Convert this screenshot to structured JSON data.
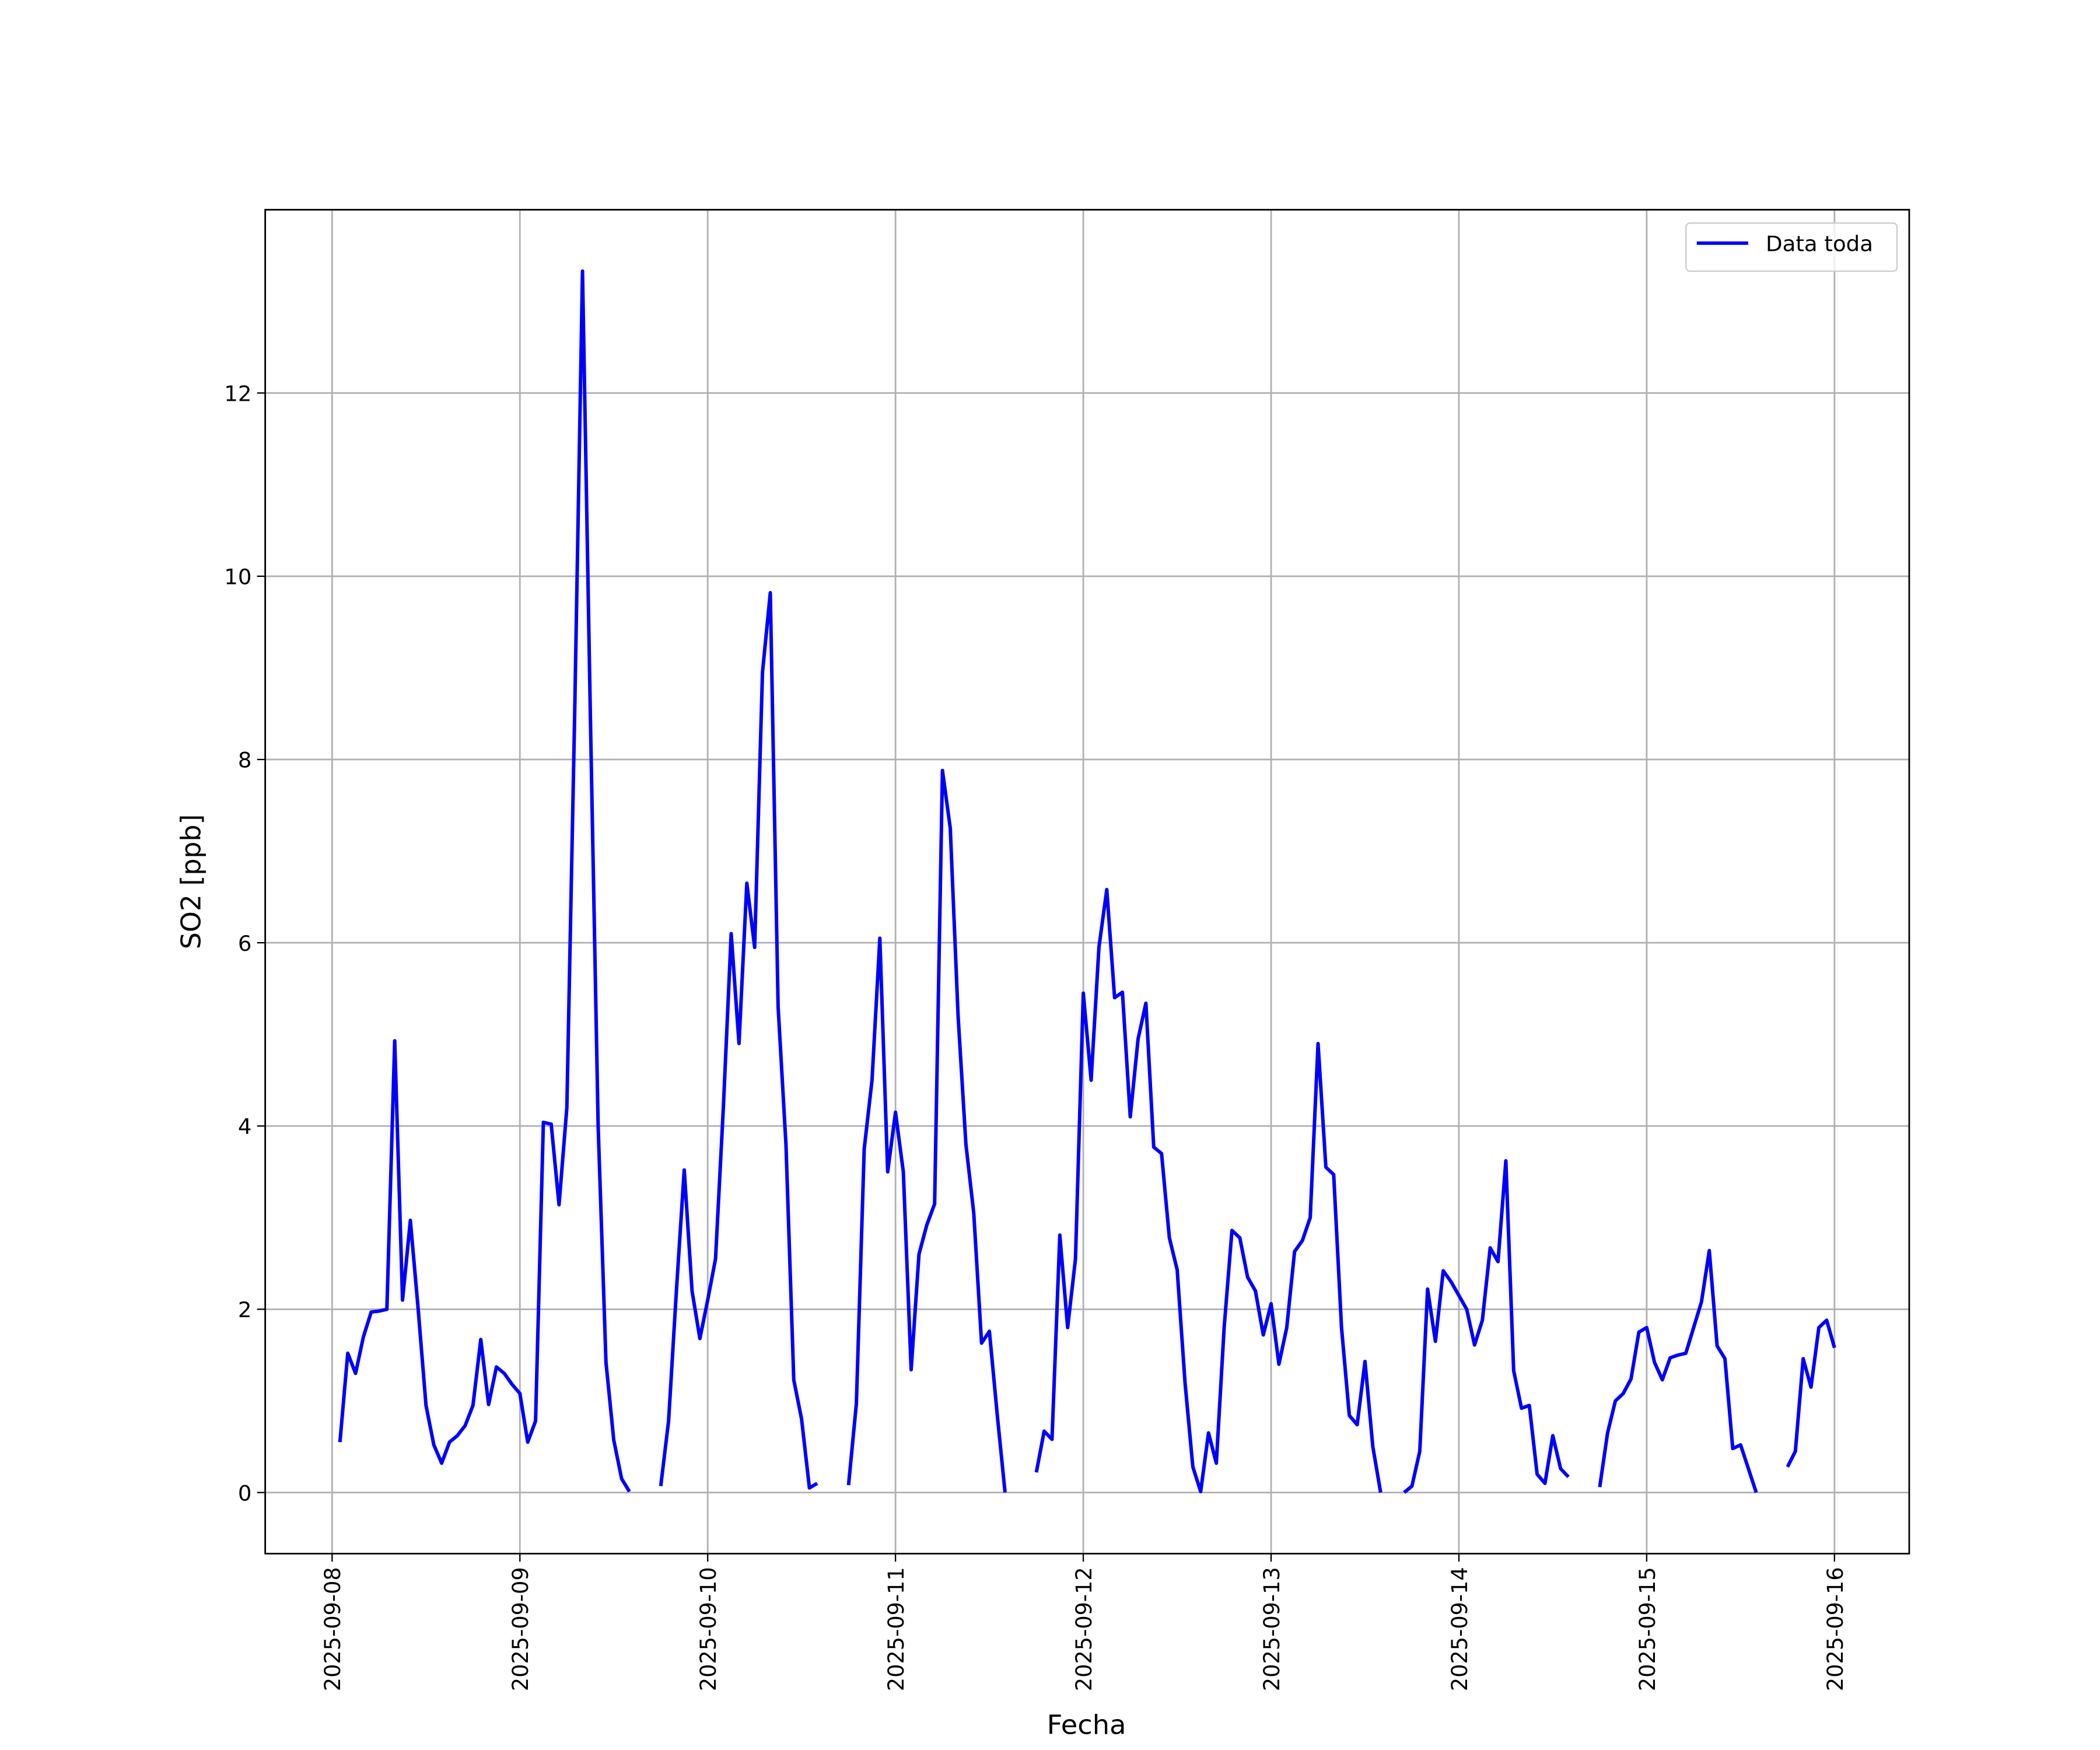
{
  "chart_data": {
    "type": "line",
    "x_label": "Fecha",
    "y_label": "SO2 [ppb]",
    "x": [
      "2025-09-08 01:00",
      "2025-09-08 02:00",
      "2025-09-08 03:00",
      "2025-09-08 04:00",
      "2025-09-08 05:00",
      "2025-09-08 06:00",
      "2025-09-08 07:00",
      "2025-09-08 08:00",
      "2025-09-08 09:00",
      "2025-09-08 10:00",
      "2025-09-08 11:00",
      "2025-09-08 12:00",
      "2025-09-08 13:00",
      "2025-09-08 14:00",
      "2025-09-08 15:00",
      "2025-09-08 16:00",
      "2025-09-08 17:00",
      "2025-09-08 18:00",
      "2025-09-08 19:00",
      "2025-09-08 20:00",
      "2025-09-08 21:00",
      "2025-09-08 22:00",
      "2025-09-08 23:00",
      "2025-09-09 00:00",
      "2025-09-09 01:00",
      "2025-09-09 02:00",
      "2025-09-09 03:00",
      "2025-09-09 04:00",
      "2025-09-09 05:00",
      "2025-09-09 06:00",
      "2025-09-09 07:00",
      "2025-09-09 08:00",
      "2025-09-09 09:00",
      "2025-09-09 10:00",
      "2025-09-09 11:00",
      "2025-09-09 12:00",
      "2025-09-09 13:00",
      "2025-09-09 14:00",
      "2025-09-09 15:00",
      "2025-09-09 16:00",
      "2025-09-09 17:00",
      "2025-09-09 18:00",
      "2025-09-09 19:00",
      "2025-09-09 20:00",
      "2025-09-09 21:00",
      "2025-09-09 22:00",
      "2025-09-09 23:00",
      "2025-09-10 00:00",
      "2025-09-10 01:00",
      "2025-09-10 02:00",
      "2025-09-10 03:00",
      "2025-09-10 04:00",
      "2025-09-10 05:00",
      "2025-09-10 06:00",
      "2025-09-10 07:00",
      "2025-09-10 08:00",
      "2025-09-10 09:00",
      "2025-09-10 10:00",
      "2025-09-10 11:00",
      "2025-09-10 12:00",
      "2025-09-10 13:00",
      "2025-09-10 14:00",
      "2025-09-10 15:00",
      "2025-09-10 16:00",
      "2025-09-10 17:00",
      "2025-09-10 18:00",
      "2025-09-10 19:00",
      "2025-09-10 20:00",
      "2025-09-10 21:00",
      "2025-09-10 22:00",
      "2025-09-10 23:00",
      "2025-09-11 00:00",
      "2025-09-11 01:00",
      "2025-09-11 02:00",
      "2025-09-11 03:00",
      "2025-09-11 04:00",
      "2025-09-11 05:00",
      "2025-09-11 06:00",
      "2025-09-11 07:00",
      "2025-09-11 08:00",
      "2025-09-11 09:00",
      "2025-09-11 10:00",
      "2025-09-11 11:00",
      "2025-09-11 12:00",
      "2025-09-11 13:00",
      "2025-09-11 14:00",
      "2025-09-11 15:00",
      "2025-09-11 16:00",
      "2025-09-11 17:00",
      "2025-09-11 18:00",
      "2025-09-11 19:00",
      "2025-09-11 20:00",
      "2025-09-11 21:00",
      "2025-09-11 22:00",
      "2025-09-11 23:00",
      "2025-09-12 00:00",
      "2025-09-12 01:00",
      "2025-09-12 02:00",
      "2025-09-12 03:00",
      "2025-09-12 04:00",
      "2025-09-12 05:00",
      "2025-09-12 06:00",
      "2025-09-12 07:00",
      "2025-09-12 08:00",
      "2025-09-12 09:00",
      "2025-09-12 10:00",
      "2025-09-12 11:00",
      "2025-09-12 12:00",
      "2025-09-12 13:00",
      "2025-09-12 14:00",
      "2025-09-12 15:00",
      "2025-09-12 16:00",
      "2025-09-12 17:00",
      "2025-09-12 18:00",
      "2025-09-12 19:00",
      "2025-09-12 20:00",
      "2025-09-12 21:00",
      "2025-09-12 22:00",
      "2025-09-12 23:00",
      "2025-09-13 00:00",
      "2025-09-13 01:00",
      "2025-09-13 02:00",
      "2025-09-13 03:00",
      "2025-09-13 04:00",
      "2025-09-13 05:00",
      "2025-09-13 06:00",
      "2025-09-13 07:00",
      "2025-09-13 08:00",
      "2025-09-13 09:00",
      "2025-09-13 10:00",
      "2025-09-13 11:00",
      "2025-09-13 12:00",
      "2025-09-13 13:00",
      "2025-09-13 14:00",
      "2025-09-13 15:00",
      "2025-09-13 16:00",
      "2025-09-13 17:00",
      "2025-09-13 18:00",
      "2025-09-13 19:00",
      "2025-09-13 20:00",
      "2025-09-13 21:00",
      "2025-09-13 22:00",
      "2025-09-13 23:00",
      "2025-09-14 00:00",
      "2025-09-14 01:00",
      "2025-09-14 02:00",
      "2025-09-14 03:00",
      "2025-09-14 04:00",
      "2025-09-14 05:00",
      "2025-09-14 06:00",
      "2025-09-14 07:00",
      "2025-09-14 08:00",
      "2025-09-14 09:00",
      "2025-09-14 10:00",
      "2025-09-14 11:00",
      "2025-09-14 12:00",
      "2025-09-14 13:00",
      "2025-09-14 14:00",
      "2025-09-14 15:00",
      "2025-09-14 16:00",
      "2025-09-14 17:00",
      "2025-09-14 18:00",
      "2025-09-14 19:00",
      "2025-09-14 20:00",
      "2025-09-14 21:00",
      "2025-09-14 22:00",
      "2025-09-14 23:00",
      "2025-09-15 00:00",
      "2025-09-15 01:00",
      "2025-09-15 02:00",
      "2025-09-15 03:00",
      "2025-09-15 04:00",
      "2025-09-15 05:00",
      "2025-09-15 06:00",
      "2025-09-15 07:00",
      "2025-09-15 08:00",
      "2025-09-15 09:00",
      "2025-09-15 10:00",
      "2025-09-15 11:00",
      "2025-09-15 12:00",
      "2025-09-15 13:00",
      "2025-09-15 14:00",
      "2025-09-15 15:00",
      "2025-09-15 16:00",
      "2025-09-15 17:00",
      "2025-09-15 18:00",
      "2025-09-15 19:00",
      "2025-09-15 20:00",
      "2025-09-15 21:00",
      "2025-09-15 22:00",
      "2025-09-15 23:00",
      "2025-09-16 00:00"
    ],
    "series": [
      {
        "name": "Data toda",
        "color": "#0000ff",
        "values": [
          0.55,
          1.52,
          1.3,
          1.7,
          1.97,
          1.98,
          2.0,
          4.93,
          2.1,
          2.97,
          2.0,
          0.95,
          0.52,
          0.32,
          0.55,
          0.62,
          0.73,
          0.95,
          1.67,
          0.96,
          1.37,
          1.3,
          1.18,
          1.08,
          0.55,
          0.78,
          4.04,
          4.02,
          3.14,
          4.2,
          8.5,
          13.33,
          8.5,
          4.0,
          1.42,
          0.57,
          0.15,
          0.01,
          null,
          null,
          null,
          0.07,
          0.78,
          2.2,
          3.52,
          2.2,
          1.68,
          2.1,
          2.55,
          4.2,
          6.1,
          4.9,
          6.65,
          5.95,
          8.95,
          9.82,
          5.3,
          3.8,
          1.23,
          0.8,
          0.05,
          0.1,
          null,
          null,
          null,
          0.08,
          0.97,
          3.75,
          4.5,
          6.05,
          3.5,
          4.15,
          3.5,
          1.34,
          2.6,
          2.92,
          3.15,
          7.88,
          7.25,
          5.2,
          3.8,
          3.05,
          1.63,
          1.76,
          0.85,
          0.0,
          null,
          null,
          null,
          0.22,
          0.67,
          0.58,
          2.81,
          1.8,
          2.55,
          5.45,
          4.5,
          5.95,
          6.58,
          5.4,
          5.46,
          4.1,
          4.95,
          5.34,
          3.77,
          3.7,
          2.78,
          2.43,
          1.2,
          0.28,
          0.01,
          0.65,
          0.32,
          1.8,
          2.86,
          2.78,
          2.35,
          2.2,
          1.72,
          2.06,
          1.4,
          1.8,
          2.63,
          2.75,
          3.0,
          4.9,
          3.55,
          3.47,
          1.8,
          0.84,
          0.74,
          1.43,
          0.5,
          0.0,
          null,
          null,
          0.0,
          0.07,
          0.45,
          2.22,
          1.65,
          2.42,
          2.3,
          2.15,
          2.0,
          1.61,
          1.88,
          2.67,
          2.52,
          3.62,
          1.33,
          0.92,
          0.95,
          0.2,
          0.1,
          0.62,
          0.26,
          0.17,
          null,
          null,
          null,
          0.06,
          0.65,
          1.0,
          1.08,
          1.24,
          1.75,
          1.8,
          1.42,
          1.23,
          1.47,
          1.5,
          1.52,
          1.8,
          2.08,
          2.64,
          1.6,
          1.46,
          0.48,
          0.52,
          0.26,
          0.0,
          null,
          null,
          null,
          0.28,
          0.45,
          1.46,
          1.15,
          1.8,
          1.88,
          1.58
        ]
      }
    ],
    "xlim": [
      "2025-09-07 15:27",
      "2025-09-16 09:33"
    ],
    "xticks": [
      "2025-09-08",
      "2025-09-09",
      "2025-09-10",
      "2025-09-11",
      "2025-09-12",
      "2025-09-13",
      "2025-09-14",
      "2025-09-15",
      "2025-09-16"
    ],
    "ylim": [
      -0.667,
      14.0
    ],
    "yticks": [
      0,
      2,
      4,
      6,
      8,
      10,
      12
    ],
    "grid": true,
    "legend": "upper right"
  }
}
